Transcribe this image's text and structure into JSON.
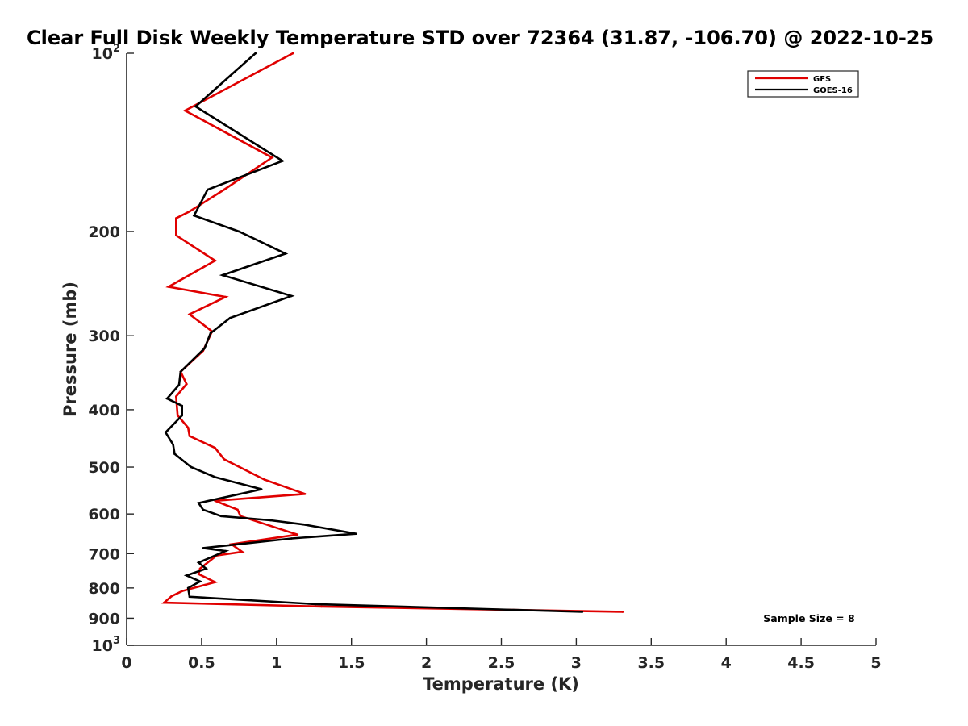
{
  "chart_data": {
    "type": "line",
    "title": "Clear Full Disk Weekly Temperature STD over 72364 (31.87, -106.70) @ 2022-10-25",
    "xlabel": "Temperature (K)",
    "ylabel": "Pressure (mb)",
    "xlim": [
      0,
      5
    ],
    "ylim": [
      100,
      1000
    ],
    "yscale": "log",
    "y_reversed": true,
    "x_ticks": [
      {
        "value": 0,
        "label": "0"
      },
      {
        "value": 0.5,
        "label": "0.5"
      },
      {
        "value": 1,
        "label": "1"
      },
      {
        "value": 1.5,
        "label": "1.5"
      },
      {
        "value": 2,
        "label": "2"
      },
      {
        "value": 2.5,
        "label": "2.5"
      },
      {
        "value": 3,
        "label": "3"
      },
      {
        "value": 3.5,
        "label": "3.5"
      },
      {
        "value": 4,
        "label": "4"
      },
      {
        "value": 4.5,
        "label": "4.5"
      },
      {
        "value": 5,
        "label": "5"
      }
    ],
    "y_ticks": [
      {
        "value": 100,
        "base": "10",
        "exp": "2"
      },
      {
        "value": 200,
        "base": "200",
        "exp": ""
      },
      {
        "value": 300,
        "base": "300",
        "exp": ""
      },
      {
        "value": 400,
        "base": "400",
        "exp": ""
      },
      {
        "value": 500,
        "base": "500",
        "exp": ""
      },
      {
        "value": 600,
        "base": "600",
        "exp": ""
      },
      {
        "value": 700,
        "base": "700",
        "exp": ""
      },
      {
        "value": 800,
        "base": "800",
        "exp": ""
      },
      {
        "value": 900,
        "base": "900",
        "exp": ""
      },
      {
        "value": 1000,
        "base": "10",
        "exp": "3"
      }
    ],
    "grid": false,
    "legend_position": "top-right",
    "series": [
      {
        "name": "GFS",
        "color": "#e00000",
        "points": [
          [
            1.11,
            100
          ],
          [
            0.39,
            125
          ],
          [
            0.97,
            150
          ],
          [
            0.65,
            170
          ],
          [
            0.42,
            185
          ],
          [
            0.33,
            190
          ],
          [
            0.33,
            203
          ],
          [
            0.59,
            224
          ],
          [
            0.28,
            248
          ],
          [
            0.66,
            258
          ],
          [
            0.42,
            276
          ],
          [
            0.57,
            295
          ],
          [
            0.51,
            318
          ],
          [
            0.36,
            345
          ],
          [
            0.4,
            362
          ],
          [
            0.33,
            380
          ],
          [
            0.34,
            409
          ],
          [
            0.41,
            429
          ],
          [
            0.42,
            443
          ],
          [
            0.59,
            464
          ],
          [
            0.65,
            485
          ],
          [
            0.92,
            525
          ],
          [
            1.19,
            555
          ],
          [
            0.59,
            570
          ],
          [
            0.74,
            590
          ],
          [
            0.76,
            605
          ],
          [
            1.03,
            637
          ],
          [
            1.14,
            650
          ],
          [
            0.7,
            675
          ],
          [
            0.77,
            695
          ],
          [
            0.6,
            705
          ],
          [
            0.49,
            742
          ],
          [
            0.48,
            758
          ],
          [
            0.59,
            782
          ],
          [
            0.37,
            810
          ],
          [
            0.3,
            826
          ],
          [
            0.25,
            847
          ],
          [
            1.3,
            860
          ],
          [
            3.31,
            878
          ]
        ]
      },
      {
        "name": "GOES-16",
        "color": "#000000",
        "points": [
          [
            0.86,
            100
          ],
          [
            0.46,
            123
          ],
          [
            1.04,
            152
          ],
          [
            0.54,
            170
          ],
          [
            0.45,
            188
          ],
          [
            0.75,
            200
          ],
          [
            1.06,
            218
          ],
          [
            0.64,
            237
          ],
          [
            1.1,
            257
          ],
          [
            0.69,
            280
          ],
          [
            0.56,
            297
          ],
          [
            0.52,
            315
          ],
          [
            0.36,
            345
          ],
          [
            0.35,
            363
          ],
          [
            0.27,
            383
          ],
          [
            0.37,
            394
          ],
          [
            0.37,
            409
          ],
          [
            0.26,
            437
          ],
          [
            0.31,
            458
          ],
          [
            0.32,
            475
          ],
          [
            0.43,
            500
          ],
          [
            0.59,
            520
          ],
          [
            0.9,
            545
          ],
          [
            0.48,
            575
          ],
          [
            0.51,
            590
          ],
          [
            0.63,
            605
          ],
          [
            0.96,
            615
          ],
          [
            1.18,
            625
          ],
          [
            1.53,
            648
          ],
          [
            1.1,
            660
          ],
          [
            0.51,
            685
          ],
          [
            0.66,
            693
          ],
          [
            0.48,
            725
          ],
          [
            0.53,
            742
          ],
          [
            0.4,
            762
          ],
          [
            0.49,
            780
          ],
          [
            0.41,
            800
          ],
          [
            0.42,
            828
          ],
          [
            1.26,
            852
          ],
          [
            3.04,
            878
          ]
        ]
      }
    ],
    "annotations": [
      "Sample Size = 8"
    ]
  }
}
